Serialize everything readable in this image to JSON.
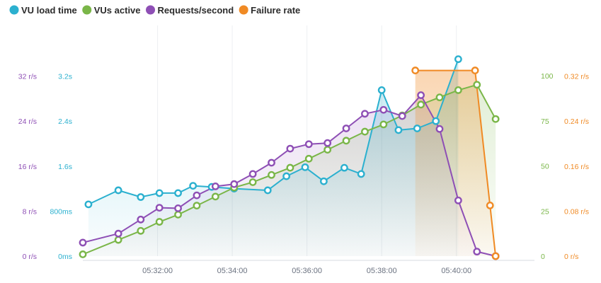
{
  "chart_data": {
    "type": "line",
    "title": "",
    "xlabel": "",
    "grid": {
      "x": true,
      "y": false
    },
    "legend": {
      "placement": "top-left",
      "entries": [
        {
          "name": "VU load time",
          "color": "#2bb0cf"
        },
        {
          "name": "VUs active",
          "color": "#7ab648"
        },
        {
          "name": "Requests/second",
          "color": "#8e4fb5"
        },
        {
          "name": "Failure rate",
          "color": "#f08a24"
        }
      ]
    },
    "x_ticks": [
      "05:32:00",
      "05:34:00",
      "05:36:00",
      "05:38:00",
      "05:40:00"
    ],
    "x_tick_values": [
      2,
      4,
      6,
      8,
      10
    ],
    "xlim": [
      0,
      11.9
    ],
    "axes": {
      "requests": {
        "ticks": [
          "0 r/s",
          "8 r/s",
          "16 r/s",
          "24 r/s",
          "32 r/s"
        ],
        "values": [
          0,
          8,
          16,
          24,
          32
        ],
        "ylim": [
          0,
          42
        ],
        "color": "#8e4fb5"
      },
      "load_time": {
        "ticks": [
          "0ms",
          "800ms",
          "1.6s",
          "2.4s",
          "3.2s"
        ],
        "values": [
          0,
          0.8,
          1.6,
          2.4,
          3.2
        ],
        "ylim": [
          0,
          4.2
        ],
        "color": "#2bb0cf"
      },
      "vus": {
        "ticks": [
          "0",
          "25",
          "50",
          "75",
          "100"
        ],
        "values": [
          0,
          25,
          50,
          75,
          100
        ],
        "ylim": [
          0,
          131
        ],
        "color": "#7ab648"
      },
      "failure": {
        "ticks": [
          "0 r/s",
          "0.08 r/s",
          "0.16 r/s",
          "0.24 r/s",
          "0.32 r/s"
        ],
        "values": [
          0,
          0.08,
          0.16,
          0.24,
          0.32
        ],
        "ylim": [
          0,
          0.42
        ],
        "color": "#f08a24"
      }
    },
    "series": [
      {
        "name": "VU load time",
        "axis": "load_time",
        "color": "#2bb0cf",
        "unit": "s",
        "x": [
          0.15,
          0.95,
          1.55,
          2.05,
          2.55,
          2.95,
          3.45,
          4.05,
          4.95,
          5.45,
          5.95,
          6.45,
          7.0,
          7.45,
          8.0,
          8.45,
          8.95,
          9.45,
          10.05
        ],
        "y": [
          0.92,
          1.17,
          1.05,
          1.12,
          1.12,
          1.25,
          1.23,
          1.2,
          1.17,
          1.42,
          1.58,
          1.33,
          1.57,
          1.46,
          2.95,
          2.24,
          2.27,
          2.4,
          3.5
        ]
      },
      {
        "name": "VUs active",
        "axis": "vus",
        "color": "#7ab648",
        "unit": "",
        "x": [
          0,
          0.95,
          1.55,
          2.05,
          2.55,
          3.05,
          3.55,
          4.05,
          4.55,
          5.05,
          5.55,
          6.05,
          6.55,
          7.05,
          7.55,
          8.05,
          8.55,
          9.05,
          9.55,
          10.05,
          10.55,
          11.05
        ],
        "y": [
          1,
          9,
          14,
          19,
          23,
          28,
          33,
          38,
          41,
          45,
          49,
          54,
          59,
          64,
          69,
          73,
          78,
          84,
          88,
          92,
          95,
          76
        ]
      },
      {
        "name": "Requests/second",
        "axis": "requests",
        "color": "#8e4fb5",
        "unit": "r/s",
        "x": [
          0,
          0.95,
          1.55,
          2.05,
          2.55,
          3.05,
          3.55,
          4.05,
          4.55,
          5.05,
          5.55,
          6.05,
          6.55,
          7.05,
          7.55,
          8.05,
          8.55,
          9.05,
          9.55,
          10.05,
          10.55,
          11.05
        ],
        "y": [
          2.4,
          4.0,
          6.5,
          8.6,
          8.5,
          10.8,
          12.4,
          12.8,
          14.6,
          16.6,
          19.1,
          19.9,
          20.1,
          22.7,
          25.3,
          26.0,
          24.9,
          28.6,
          22.6,
          9.9,
          0.8,
          0
        ]
      },
      {
        "name": "Failure rate",
        "axis": "failure",
        "color": "#f08a24",
        "unit": "r/s",
        "x": [
          8.9,
          10.5,
          10.9,
          11.05
        ],
        "y": [
          0.33,
          0.33,
          0.09,
          0.0
        ]
      }
    ]
  }
}
